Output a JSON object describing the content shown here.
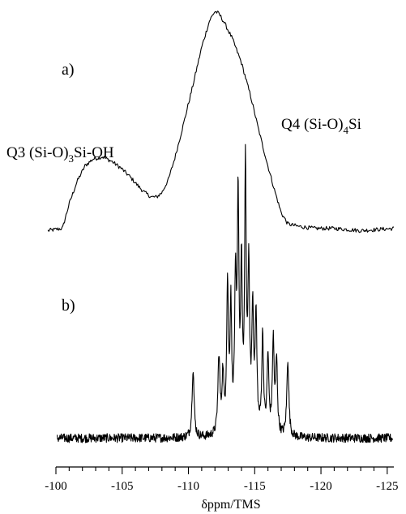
{
  "chart_data": {
    "type": "line",
    "xlabel": "δppm/TMS",
    "xlim": [
      -100,
      -125.5
    ],
    "x_reversed": true,
    "ticks": [
      -100,
      -105,
      -110,
      -115,
      -120,
      -125
    ],
    "tick_labels": [
      "-100",
      "-105",
      "-110",
      "-115",
      "-120",
      "-125"
    ],
    "grid": false,
    "y_axis_shown": false,
    "annotations": [
      {
        "id": "panel_a",
        "text": "a)"
      },
      {
        "id": "panel_b",
        "text": "b)"
      },
      {
        "id": "q3",
        "parts": [
          "Q3  (Si-O)",
          "3",
          "Si-OH"
        ]
      },
      {
        "id": "q4",
        "parts": [
          "Q4  (Si-O)",
          "4",
          "Si"
        ]
      }
    ],
    "series": [
      {
        "id": "a",
        "style": "broad",
        "points": [
          [
            -99.4,
            0.02
          ],
          [
            -100.5,
            0.03
          ],
          [
            -101.0,
            0.14
          ],
          [
            -101.6,
            0.24
          ],
          [
            -102.2,
            0.31
          ],
          [
            -102.8,
            0.34
          ],
          [
            -103.5,
            0.35
          ],
          [
            -104.2,
            0.33
          ],
          [
            -104.9,
            0.3
          ],
          [
            -105.6,
            0.26
          ],
          [
            -106.2,
            0.22
          ],
          [
            -106.7,
            0.19
          ],
          [
            -107.2,
            0.17
          ],
          [
            -107.6,
            0.17
          ],
          [
            -108.0,
            0.19
          ],
          [
            -108.5,
            0.25
          ],
          [
            -109.0,
            0.35
          ],
          [
            -109.6,
            0.49
          ],
          [
            -110.3,
            0.66
          ],
          [
            -111.0,
            0.84
          ],
          [
            -111.6,
            0.96
          ],
          [
            -112.0,
            1.0
          ],
          [
            -112.3,
            0.99
          ],
          [
            -112.7,
            0.95
          ],
          [
            -113.3,
            0.88
          ],
          [
            -114.0,
            0.77
          ],
          [
            -114.7,
            0.62
          ],
          [
            -115.3,
            0.47
          ],
          [
            -115.9,
            0.33
          ],
          [
            -116.5,
            0.2
          ],
          [
            -117.0,
            0.1
          ],
          [
            -117.5,
            0.05
          ],
          [
            -118.2,
            0.04
          ],
          [
            -119.5,
            0.03
          ],
          [
            -121.0,
            0.03
          ],
          [
            -123.0,
            0.02
          ],
          [
            -125.5,
            0.03
          ]
        ]
      },
      {
        "id": "b",
        "style": "sharp",
        "baseline": 0.03,
        "peaks": [
          {
            "x": -110.35,
            "h": 0.27,
            "w": 0.09
          },
          {
            "x": -112.3,
            "h": 0.3,
            "w": 0.09
          },
          {
            "x": -112.6,
            "h": 0.22,
            "w": 0.08
          },
          {
            "x": -112.95,
            "h": 0.57,
            "w": 0.08
          },
          {
            "x": -113.2,
            "h": 0.48,
            "w": 0.07
          },
          {
            "x": -113.55,
            "h": 0.55,
            "w": 0.08
          },
          {
            "x": -113.75,
            "h": 0.88,
            "w": 0.07
          },
          {
            "x": -114.0,
            "h": 0.62,
            "w": 0.07
          },
          {
            "x": -114.3,
            "h": 1.0,
            "w": 0.07
          },
          {
            "x": -114.55,
            "h": 0.6,
            "w": 0.08
          },
          {
            "x": -114.85,
            "h": 0.46,
            "w": 0.08
          },
          {
            "x": -115.1,
            "h": 0.44,
            "w": 0.08
          },
          {
            "x": -115.6,
            "h": 0.38,
            "w": 0.08
          },
          {
            "x": -116.0,
            "h": 0.3,
            "w": 0.08
          },
          {
            "x": -116.4,
            "h": 0.36,
            "w": 0.08
          },
          {
            "x": -116.65,
            "h": 0.28,
            "w": 0.08
          },
          {
            "x": -117.5,
            "h": 0.3,
            "w": 0.09
          }
        ],
        "x_range": [
          -100.1,
          -125.4
        ]
      }
    ]
  }
}
